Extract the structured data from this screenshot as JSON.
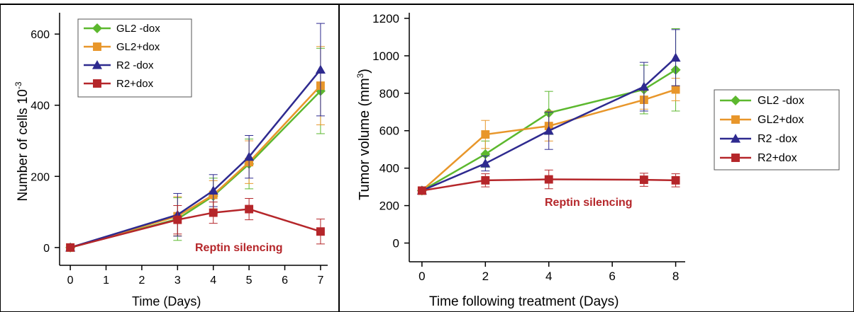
{
  "chart_data": [
    {
      "type": "line",
      "xlabel": "Time (Days)",
      "ylabel": "Number of cells 10",
      "ylabel_superscript": "-3",
      "xlim": [
        -0.3,
        7.2
      ],
      "ylim": [
        -50,
        660
      ],
      "xticks": [
        0,
        1,
        2,
        3,
        4,
        5,
        6,
        7
      ],
      "yticks": [
        0,
        200,
        400,
        600
      ],
      "annotation": "Reptin silencing",
      "legend_position": "top-left",
      "series": [
        {
          "name": "GL2 -dox",
          "color": "#5cb82e",
          "marker": "diamond",
          "x": [
            0,
            3,
            4,
            5,
            7
          ],
          "y": [
            0,
            80,
            145,
            235,
            440
          ],
          "err": [
            0,
            60,
            50,
            70,
            120
          ]
        },
        {
          "name": "GL2+dox",
          "color": "#e8962a",
          "marker": "square",
          "x": [
            0,
            3,
            4,
            5,
            7
          ],
          "y": [
            0,
            88,
            148,
            240,
            455
          ],
          "err": [
            0,
            55,
            40,
            60,
            110
          ]
        },
        {
          "name": "R2 -dox",
          "color": "#2e2a8f",
          "marker": "triangle",
          "x": [
            0,
            3,
            4,
            5,
            7
          ],
          "y": [
            0,
            92,
            160,
            255,
            500
          ],
          "err": [
            0,
            60,
            45,
            60,
            130
          ]
        },
        {
          "name": "R2+dox",
          "color": "#b5262a",
          "marker": "square",
          "x": [
            0,
            3,
            4,
            5,
            7
          ],
          "y": [
            0,
            78,
            98,
            108,
            45
          ],
          "err": [
            0,
            40,
            30,
            30,
            35
          ]
        }
      ]
    },
    {
      "type": "line",
      "xlabel": "Time following treatment (Days)",
      "ylabel": "Tumor volume (mm",
      "ylabel_superscript": "3",
      "ylabel_suffix": ")",
      "xlim": [
        -0.4,
        8.3
      ],
      "ylim": [
        -100,
        1230
      ],
      "xticks": [
        0,
        2,
        4,
        6,
        8
      ],
      "yticks": [
        0,
        200,
        400,
        600,
        800,
        1000,
        1200
      ],
      "annotation": "Reptin silencing",
      "legend_position": "right",
      "series": [
        {
          "name": "GL2 -dox",
          "color": "#5cb82e",
          "marker": "diamond",
          "x": [
            0,
            2,
            4,
            7,
            8
          ],
          "y": [
            280,
            475,
            695,
            820,
            925
          ],
          "err": [
            0,
            70,
            115,
            130,
            220
          ]
        },
        {
          "name": "GL2+dox",
          "color": "#e8962a",
          "marker": "square",
          "x": [
            0,
            2,
            4,
            7,
            8
          ],
          "y": [
            280,
            580,
            625,
            765,
            820
          ],
          "err": [
            0,
            75,
            80,
            50,
            60
          ]
        },
        {
          "name": "R2 -dox",
          "color": "#2e2a8f",
          "marker": "triangle",
          "x": [
            0,
            2,
            4,
            7,
            8
          ],
          "y": [
            280,
            425,
            600,
            835,
            990
          ],
          "err": [
            0,
            40,
            100,
            130,
            150
          ]
        },
        {
          "name": "R2+dox",
          "color": "#b5262a",
          "marker": "square",
          "x": [
            0,
            2,
            4,
            7,
            8
          ],
          "y": [
            280,
            335,
            340,
            338,
            335
          ],
          "err": [
            0,
            35,
            50,
            35,
            35
          ]
        }
      ]
    }
  ]
}
